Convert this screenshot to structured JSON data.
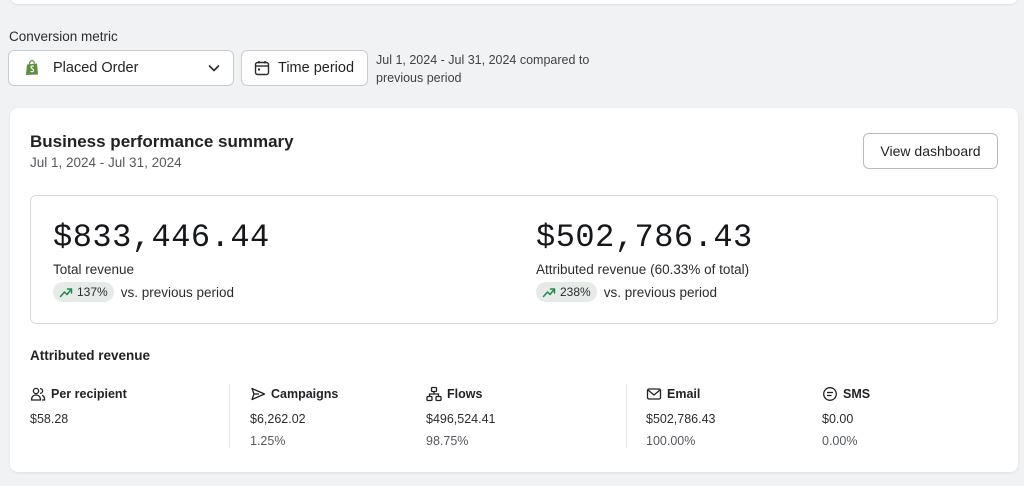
{
  "filters": {
    "conversion_metric_label": "Conversion metric",
    "metric_selected": "Placed Order",
    "time_period_label": "Time period",
    "period_note": "Jul 1, 2024 - Jul 31, 2024 compared to previous period"
  },
  "summary": {
    "title": "Business performance summary",
    "date_range": "Jul 1, 2024 - Jul 31, 2024",
    "view_dashboard_label": "View dashboard"
  },
  "totals": {
    "total_revenue": {
      "value": "$833,446.44",
      "label": "Total revenue",
      "change": "137%",
      "change_text": "vs. previous period"
    },
    "attributed_revenue": {
      "value": "$502,786.43",
      "label": "Attributed revenue (60.33% of total)",
      "change": "238%",
      "change_text": "vs. previous period"
    }
  },
  "attributed": {
    "title": "Attributed revenue",
    "per_recipient": {
      "label": "Per recipient",
      "value": "$58.28",
      "icon": "users-icon"
    },
    "campaigns": {
      "label": "Campaigns",
      "value": "$6,262.02",
      "pct": "1.25%",
      "icon": "send-icon"
    },
    "flows": {
      "label": "Flows",
      "value": "$496,524.41",
      "pct": "98.75%",
      "icon": "flow-icon"
    },
    "email": {
      "label": "Email",
      "value": "$502,786.43",
      "pct": "100.00%",
      "icon": "mail-icon"
    },
    "sms": {
      "label": "SMS",
      "value": "$0.00",
      "pct": "0.00%",
      "icon": "sms-icon"
    }
  },
  "colors": {
    "shopify_green": "#5e8e3e",
    "trend_green": "#1f8a4c",
    "badge_bg": "#e7ebe8"
  }
}
